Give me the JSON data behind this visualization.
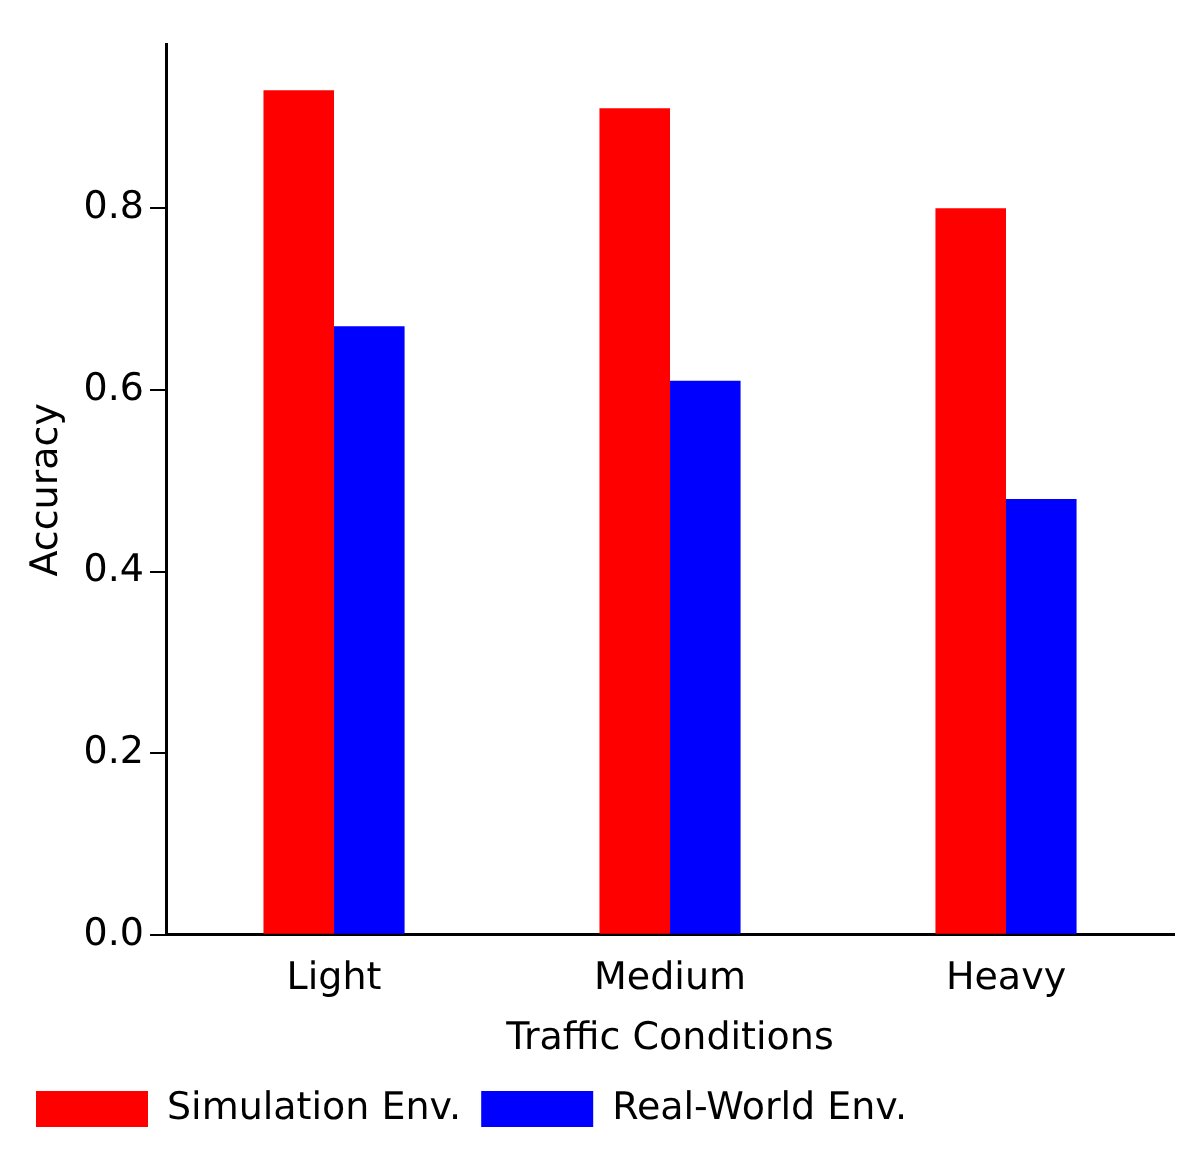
{
  "chart_data": {
    "type": "bar",
    "xlabel": "Traffic Conditions",
    "ylabel": "Accuracy",
    "categories": [
      "Light",
      "Medium",
      "Heavy"
    ],
    "series": [
      {
        "name": "Simulation Env.",
        "color": "#ff0000",
        "values": [
          0.93,
          0.91,
          0.8
        ]
      },
      {
        "name": "Real-World Env.",
        "color": "#0000ff",
        "values": [
          0.67,
          0.61,
          0.48
        ]
      }
    ],
    "ylim": [
      0,
      0.98
    ],
    "yticks": [
      {
        "value": 0,
        "label": "0.0"
      },
      {
        "value": 0.2,
        "label": "0.2"
      },
      {
        "value": 0.4,
        "label": "0.4"
      },
      {
        "value": 0.6,
        "label": "0.6"
      },
      {
        "value": 0.8,
        "label": "0.8"
      }
    ],
    "grid": false,
    "legend": "bottom left"
  }
}
